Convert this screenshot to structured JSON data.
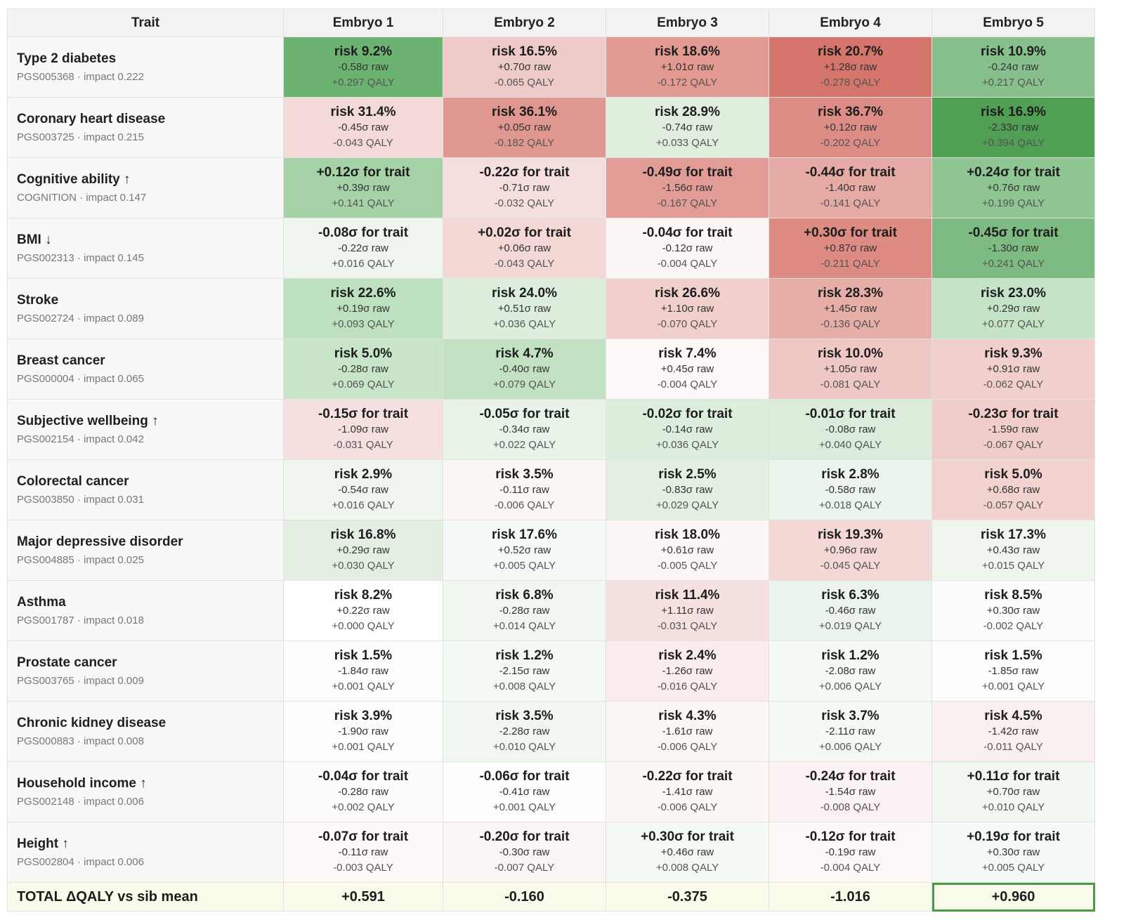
{
  "header": {
    "trait": "Trait",
    "embryos": [
      "Embryo 1",
      "Embryo 2",
      "Embryo 3",
      "Embryo 4",
      "Embryo 5"
    ]
  },
  "rows": [
    {
      "name": "Type 2 diabetes",
      "sub": "PGS005368 · impact 0.222",
      "cells": [
        {
          "main": "risk 9.2%",
          "raw": "-0.58σ raw",
          "qaly": "+0.297 QALY",
          "color": "#6cb271"
        },
        {
          "main": "risk 16.5%",
          "raw": "+0.70σ raw",
          "qaly": "-0.065 QALY",
          "color": "#eecbc8"
        },
        {
          "main": "risk 18.6%",
          "raw": "+1.01σ raw",
          "qaly": "-0.172 QALY",
          "color": "#e29a93"
        },
        {
          "main": "risk 20.7%",
          "raw": "+1.28σ raw",
          "qaly": "-0.278 QALY",
          "color": "#d6756c"
        },
        {
          "main": "risk 10.9%",
          "raw": "-0.24σ raw",
          "qaly": "+0.217 QALY",
          "color": "#87c08c"
        }
      ]
    },
    {
      "name": "Coronary heart disease",
      "sub": "PGS003725 · impact 0.215",
      "cells": [
        {
          "main": "risk 31.4%",
          "raw": "-0.45σ raw",
          "qaly": "-0.043 QALY",
          "color": "#f3dad8"
        },
        {
          "main": "risk 36.1%",
          "raw": "+0.05σ raw",
          "qaly": "-0.182 QALY",
          "color": "#e09790"
        },
        {
          "main": "risk 28.9%",
          "raw": "-0.74σ raw",
          "qaly": "+0.033 QALY",
          "color": "#dfeedd"
        },
        {
          "main": "risk 36.7%",
          "raw": "+0.12σ raw",
          "qaly": "-0.202 QALY",
          "color": "#dd8d86"
        },
        {
          "main": "risk 16.9%",
          "raw": "-2.33σ raw",
          "qaly": "+0.394 QALY",
          "color": "#519e55"
        }
      ]
    },
    {
      "name": "Cognitive ability ↑",
      "sub": "COGNITION · impact 0.147",
      "cells": [
        {
          "main": "+0.12σ for trait",
          "raw": "+0.39σ raw",
          "qaly": "+0.141 QALY",
          "color": "#a6d2a8"
        },
        {
          "main": "-0.22σ for trait",
          "raw": "-0.71σ raw",
          "qaly": "-0.032 QALY",
          "color": "#f5dfde"
        },
        {
          "main": "-0.49σ for trait",
          "raw": "-1.56σ raw",
          "qaly": "-0.167 QALY",
          "color": "#e29c96"
        },
        {
          "main": "-0.44σ for trait",
          "raw": "-1.40σ raw",
          "qaly": "-0.141 QALY",
          "color": "#e6aaa4"
        },
        {
          "main": "+0.24σ for trait",
          "raw": "+0.76σ raw",
          "qaly": "+0.199 QALY",
          "color": "#8ec593"
        }
      ]
    },
    {
      "name": "BMI ↓",
      "sub": "PGS002313 · impact 0.145",
      "cells": [
        {
          "main": "-0.08σ for trait",
          "raw": "-0.22σ raw",
          "qaly": "+0.016 QALY",
          "color": "#eef6ed"
        },
        {
          "main": "+0.02σ for trait",
          "raw": "+0.06σ raw",
          "qaly": "-0.043 QALY",
          "color": "#f3d8d6"
        },
        {
          "main": "-0.04σ for trait",
          "raw": "-0.12σ raw",
          "qaly": "-0.004 QALY",
          "color": "#fcf7f6"
        },
        {
          "main": "+0.30σ for trait",
          "raw": "+0.87σ raw",
          "qaly": "-0.211 QALY",
          "color": "#dd8b83"
        },
        {
          "main": "-0.45σ for trait",
          "raw": "-1.30σ raw",
          "qaly": "+0.241 QALY",
          "color": "#7dbb82"
        }
      ]
    },
    {
      "name": "Stroke",
      "sub": "PGS002724 · impact 0.089",
      "cells": [
        {
          "main": "risk 22.6%",
          "raw": "+0.19σ raw",
          "qaly": "+0.093 QALY",
          "color": "#bde0bf"
        },
        {
          "main": "risk 24.0%",
          "raw": "+0.51σ raw",
          "qaly": "+0.036 QALY",
          "color": "#deeedd"
        },
        {
          "main": "risk 26.6%",
          "raw": "+1.10σ raw",
          "qaly": "-0.070 QALY",
          "color": "#f1cfcc"
        },
        {
          "main": "risk 28.3%",
          "raw": "+1.45σ raw",
          "qaly": "-0.136 QALY",
          "color": "#e7ada7"
        },
        {
          "main": "risk 23.0%",
          "raw": "+0.29σ raw",
          "qaly": "+0.077 QALY",
          "color": "#c5e3c6"
        }
      ]
    },
    {
      "name": "Breast cancer",
      "sub": "PGS000004 · impact 0.065",
      "cells": [
        {
          "main": "risk 5.0%",
          "raw": "-0.28σ raw",
          "qaly": "+0.069 QALY",
          "color": "#c8e5c9"
        },
        {
          "main": "risk 4.7%",
          "raw": "-0.40σ raw",
          "qaly": "+0.079 QALY",
          "color": "#c1e1c2"
        },
        {
          "main": "risk 7.4%",
          "raw": "+0.45σ raw",
          "qaly": "-0.004 QALY",
          "color": "#fcf8f7"
        },
        {
          "main": "risk 10.0%",
          "raw": "+1.05σ raw",
          "qaly": "-0.081 QALY",
          "color": "#efc8c5"
        },
        {
          "main": "risk 9.3%",
          "raw": "+0.91σ raw",
          "qaly": "-0.062 QALY",
          "color": "#f1cfcc"
        }
      ]
    },
    {
      "name": "Subjective wellbeing ↑",
      "sub": "PGS002154 · impact 0.042",
      "cells": [
        {
          "main": "-0.15σ for trait",
          "raw": "-1.09σ raw",
          "qaly": "-0.031 QALY",
          "color": "#f5e0df"
        },
        {
          "main": "-0.05σ for trait",
          "raw": "-0.34σ raw",
          "qaly": "+0.022 QALY",
          "color": "#e9f4e8"
        },
        {
          "main": "-0.02σ for trait",
          "raw": "-0.14σ raw",
          "qaly": "+0.036 QALY",
          "color": "#deeedd"
        },
        {
          "main": "-0.01σ for trait",
          "raw": "-0.08σ raw",
          "qaly": "+0.040 QALY",
          "color": "#dbecda"
        },
        {
          "main": "-0.23σ for trait",
          "raw": "-1.59σ raw",
          "qaly": "-0.067 QALY",
          "color": "#f0cdca"
        }
      ]
    },
    {
      "name": "Colorectal cancer",
      "sub": "PGS003850 · impact 0.031",
      "cells": [
        {
          "main": "risk 2.9%",
          "raw": "-0.54σ raw",
          "qaly": "+0.016 QALY",
          "color": "#eef6ed"
        },
        {
          "main": "risk 3.5%",
          "raw": "-0.11σ raw",
          "qaly": "-0.006 QALY",
          "color": "#fcf6f5"
        },
        {
          "main": "risk 2.5%",
          "raw": "-0.83σ raw",
          "qaly": "+0.029 QALY",
          "color": "#e3f0e2"
        },
        {
          "main": "risk 2.8%",
          "raw": "-0.58σ raw",
          "qaly": "+0.018 QALY",
          "color": "#ecf5eb"
        },
        {
          "main": "risk 5.0%",
          "raw": "+0.68σ raw",
          "qaly": "-0.057 QALY",
          "color": "#f2d3d0"
        }
      ]
    },
    {
      "name": "Major depressive disorder",
      "sub": "PGS004885 · impact 0.025",
      "cells": [
        {
          "main": "risk 16.8%",
          "raw": "+0.29σ raw",
          "qaly": "+0.030 QALY",
          "color": "#e2efe1"
        },
        {
          "main": "risk 17.6%",
          "raw": "+0.52σ raw",
          "qaly": "+0.005 QALY",
          "color": "#f6faf6"
        },
        {
          "main": "risk 18.0%",
          "raw": "+0.61σ raw",
          "qaly": "-0.005 QALY",
          "color": "#fcf7f6"
        },
        {
          "main": "risk 19.3%",
          "raw": "+0.96σ raw",
          "qaly": "-0.045 QALY",
          "color": "#f3d8d6"
        },
        {
          "main": "risk 17.3%",
          "raw": "+0.43σ raw",
          "qaly": "+0.015 QALY",
          "color": "#eef6ed"
        }
      ]
    },
    {
      "name": "Asthma",
      "sub": "PGS001787 · impact 0.018",
      "cells": [
        {
          "main": "risk 8.2%",
          "raw": "+0.22σ raw",
          "qaly": "+0.000 QALY",
          "color": "#ffffff"
        },
        {
          "main": "risk 6.8%",
          "raw": "-0.28σ raw",
          "qaly": "+0.014 QALY",
          "color": "#eff7ef"
        },
        {
          "main": "risk 11.4%",
          "raw": "+1.11σ raw",
          "qaly": "-0.031 QALY",
          "color": "#f5e1df"
        },
        {
          "main": "risk 6.3%",
          "raw": "-0.46σ raw",
          "qaly": "+0.019 QALY",
          "color": "#ebf4ea"
        },
        {
          "main": "risk 8.5%",
          "raw": "+0.30σ raw",
          "qaly": "-0.002 QALY",
          "color": "#fdfbfb"
        }
      ]
    },
    {
      "name": "Prostate cancer",
      "sub": "PGS003765 · impact 0.009",
      "cells": [
        {
          "main": "risk 1.5%",
          "raw": "-1.84σ raw",
          "qaly": "+0.001 QALY",
          "color": "#fcfdfc"
        },
        {
          "main": "risk 1.2%",
          "raw": "-2.15σ raw",
          "qaly": "+0.008 QALY",
          "color": "#f3f9f3"
        },
        {
          "main": "risk 2.4%",
          "raw": "-1.26σ raw",
          "qaly": "-0.016 QALY",
          "color": "#f9eceb"
        },
        {
          "main": "risk 1.2%",
          "raw": "-2.08σ raw",
          "qaly": "+0.006 QALY",
          "color": "#f5faf5"
        },
        {
          "main": "risk 1.5%",
          "raw": "-1.85σ raw",
          "qaly": "+0.001 QALY",
          "color": "#fcfdfc"
        }
      ]
    },
    {
      "name": "Chronic kidney disease",
      "sub": "PGS000883 · impact 0.008",
      "cells": [
        {
          "main": "risk 3.9%",
          "raw": "-1.90σ raw",
          "qaly": "+0.001 QALY",
          "color": "#fcfdfc"
        },
        {
          "main": "risk 3.5%",
          "raw": "-2.28σ raw",
          "qaly": "+0.010 QALY",
          "color": "#f1f8f1"
        },
        {
          "main": "risk 4.3%",
          "raw": "-1.61σ raw",
          "qaly": "-0.006 QALY",
          "color": "#fcf6f5"
        },
        {
          "main": "risk 3.7%",
          "raw": "-2.11σ raw",
          "qaly": "+0.006 QALY",
          "color": "#f5faf5"
        },
        {
          "main": "risk 4.5%",
          "raw": "-1.42σ raw",
          "qaly": "-0.011 QALY",
          "color": "#faf0ef"
        }
      ]
    },
    {
      "name": "Household income ↑",
      "sub": "PGS002148 · impact 0.006",
      "cells": [
        {
          "main": "-0.04σ for trait",
          "raw": "-0.28σ raw",
          "qaly": "+0.002 QALY",
          "color": "#fbfdfb"
        },
        {
          "main": "-0.06σ for trait",
          "raw": "-0.41σ raw",
          "qaly": "+0.001 QALY",
          "color": "#fcfdfc"
        },
        {
          "main": "-0.22σ for trait",
          "raw": "-1.41σ raw",
          "qaly": "-0.006 QALY",
          "color": "#fcf6f5"
        },
        {
          "main": "-0.24σ for trait",
          "raw": "-1.54σ raw",
          "qaly": "-0.008 QALY",
          "color": "#fbf3f3"
        },
        {
          "main": "+0.11σ for trait",
          "raw": "+0.70σ raw",
          "qaly": "+0.010 QALY",
          "color": "#f1f8f1"
        }
      ]
    },
    {
      "name": "Height ↑",
      "sub": "PGS002804 · impact 0.006",
      "cells": [
        {
          "main": "-0.07σ for trait",
          "raw": "-0.11σ raw",
          "qaly": "-0.003 QALY",
          "color": "#fdf9f9"
        },
        {
          "main": "-0.20σ for trait",
          "raw": "-0.30σ raw",
          "qaly": "-0.007 QALY",
          "color": "#fbf4f4"
        },
        {
          "main": "+0.30σ for trait",
          "raw": "+0.46σ raw",
          "qaly": "+0.008 QALY",
          "color": "#f3f9f3"
        },
        {
          "main": "-0.12σ for trait",
          "raw": "-0.19σ raw",
          "qaly": "-0.004 QALY",
          "color": "#fdf8f8"
        },
        {
          "main": "+0.19σ for trait",
          "raw": "+0.30σ raw",
          "qaly": "+0.005 QALY",
          "color": "#f6faf6"
        }
      ]
    }
  ],
  "total": {
    "label": "TOTAL ΔQALY vs sib mean",
    "values": [
      "+0.591",
      "-0.160",
      "-0.375",
      "-1.016",
      "+0.960"
    ],
    "best_index": 4,
    "best_outline_color": "#4a9a47"
  }
}
